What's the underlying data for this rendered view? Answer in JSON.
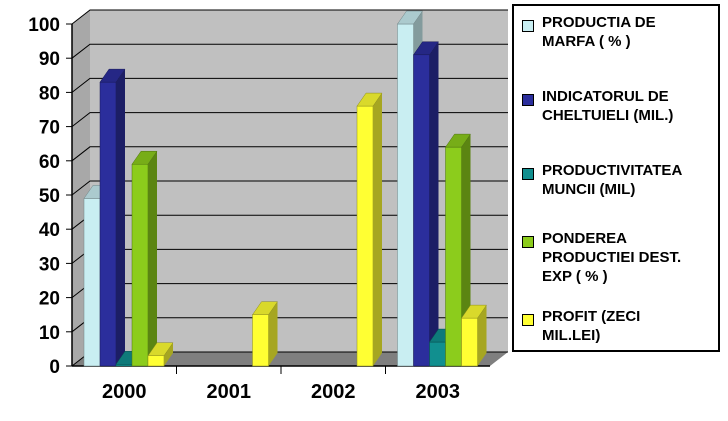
{
  "chart_data": {
    "type": "bar",
    "categories": [
      "2000",
      "2001",
      "2002",
      "2003"
    ],
    "ylim": [
      0,
      100
    ],
    "yticks": [
      "0",
      "10",
      "20",
      "30",
      "40",
      "50",
      "60",
      "70",
      "80",
      "90",
      "100"
    ],
    "grid": true,
    "legend_placement": "right",
    "series": [
      {
        "name": "PRODUCTIA DE\nMARFA ( % )",
        "color": "#c9eef2",
        "values": [
          49,
          0,
          0,
          100
        ]
      },
      {
        "name": "INDICATORUL DE\nCHELTUIELI (MIL.)",
        "color": "#2b2e9c",
        "values": [
          83,
          0,
          0,
          91
        ]
      },
      {
        "name": "PRODUCTIVITATEA\nMUNCII (MIL)",
        "color": "#118f8f",
        "values": [
          0.5,
          0,
          0,
          7
        ]
      },
      {
        "name": "PONDEREA\nPRODUCTIEI DEST.\nEXP ( % )",
        "color": "#8ccc1c",
        "values": [
          59,
          0,
          0,
          64
        ]
      },
      {
        "name": "PROFIT (ZECI\nMIL.LEI)",
        "color": "#ffff33",
        "values": [
          3,
          15,
          76,
          14
        ]
      }
    ]
  }
}
